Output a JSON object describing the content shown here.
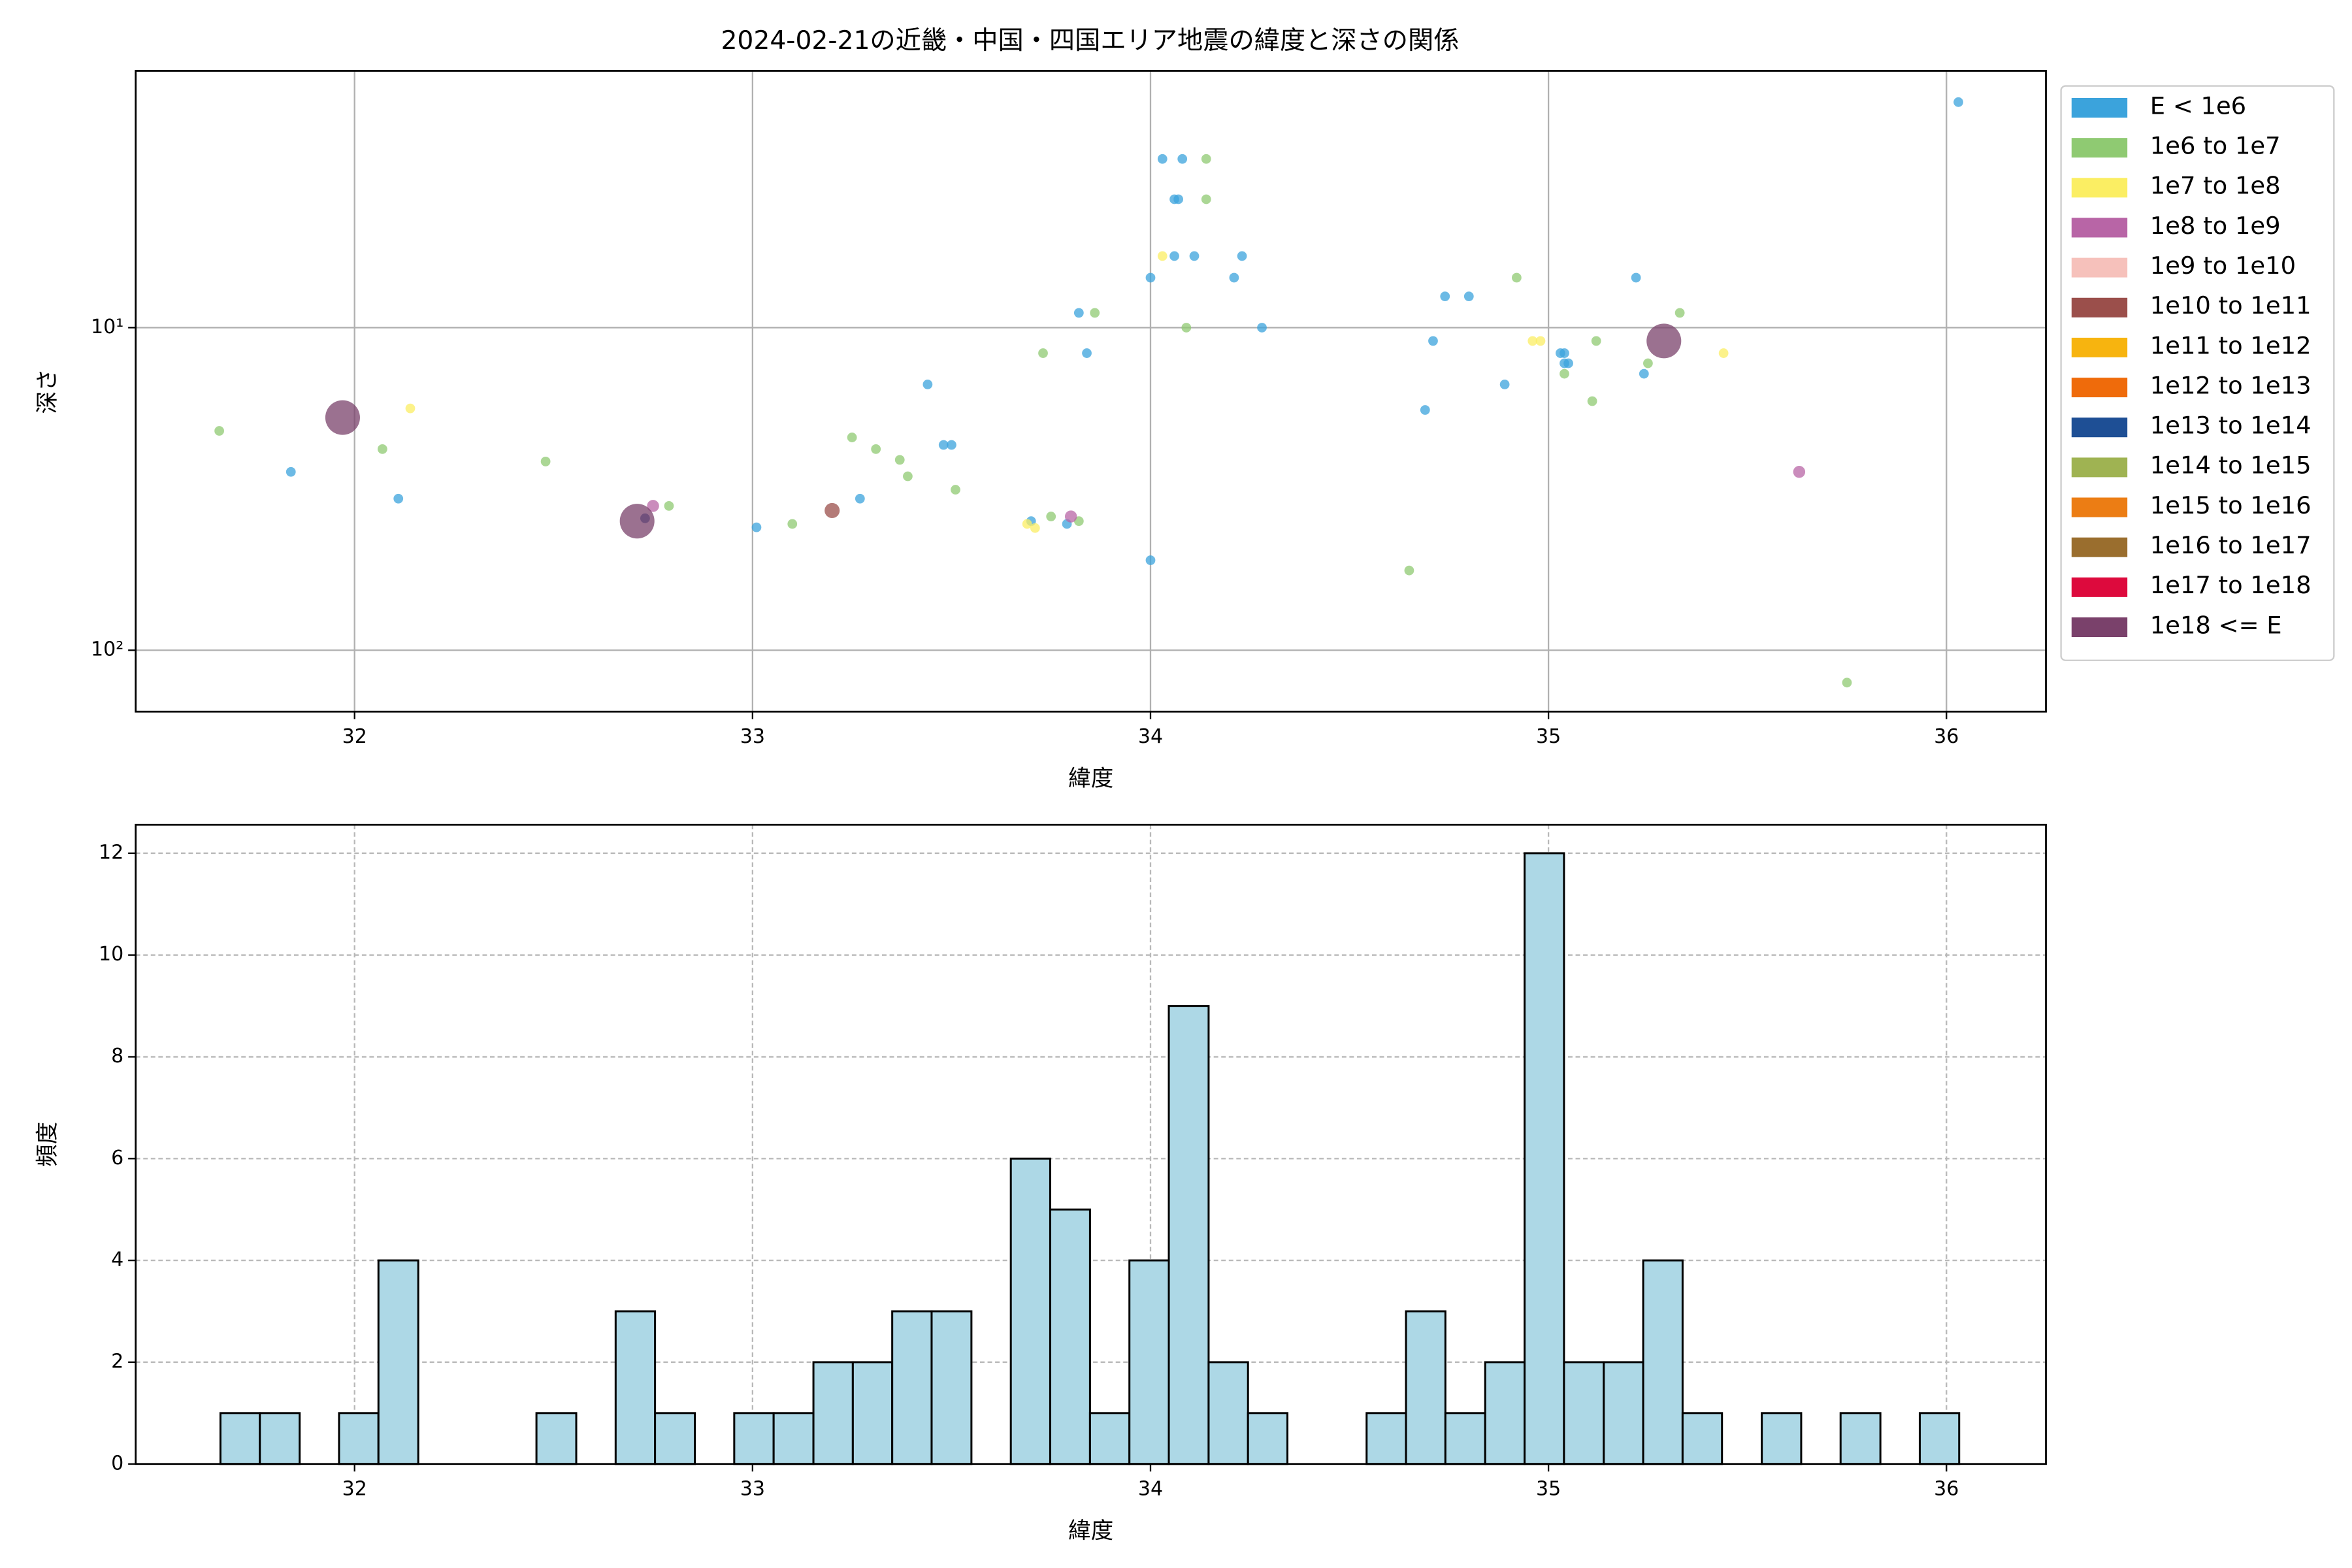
{
  "chart_data": [
    {
      "type": "scatter",
      "title": "2024-02-21の近畿・中国・四国エリア地震の緯度と深さの関係",
      "xlabel": "緯度",
      "ylabel": "深さ",
      "xlim": [
        31.45,
        36.25
      ],
      "xticks": [
        32,
        33,
        34,
        35,
        36
      ],
      "ylim": [
        155,
        1.6
      ],
      "yscale": "log",
      "yticks": [
        {
          "value": 10,
          "label": "10¹"
        },
        {
          "value": 100,
          "label": "10²"
        }
      ],
      "grid": true,
      "grid_linestyle": "solid",
      "legend": "outside upper right",
      "series": [
        {
          "name": "E < 1e6",
          "color": "#3ba3dc",
          "size": 3.2,
          "x": [
            31.84,
            32.11,
            33.01,
            33.27,
            33.44,
            33.48,
            33.5,
            33.7,
            33.79,
            33.82,
            33.84,
            34.0,
            34.0,
            34.03,
            34.06,
            34.07,
            34.06,
            34.08,
            34.11,
            34.21,
            34.23,
            34.28,
            34.69,
            34.71,
            34.74,
            34.8,
            34.89,
            35.03,
            35.04,
            35.04,
            35.05,
            35.22,
            35.24,
            36.03
          ],
          "values": [
            28,
            33.9,
            41.6,
            33.9,
            15,
            23.1,
            23.1,
            39.8,
            40.6,
            9.0,
            12,
            52.6,
            7.0,
            3.0,
            4.0,
            4.0,
            6.0,
            3.0,
            6,
            7,
            6,
            10,
            18,
            11,
            8,
            8,
            15,
            12,
            12,
            12.9,
            12.9,
            7,
            13.9,
            2.0
          ]
        },
        {
          "name": "1e6 to 1e7",
          "color": "#8fca72",
          "size": 3.2,
          "x": [
            31.66,
            32.07,
            32.48,
            32.79,
            33.1,
            33.25,
            33.31,
            33.37,
            33.39,
            33.51,
            33.73,
            33.75,
            33.82,
            33.86,
            34.09,
            34.14,
            34.14,
            34.65,
            34.92,
            35.04,
            35.11,
            35.12,
            35.25,
            35.33,
            35.75
          ],
          "values": [
            20.9,
            23.8,
            26,
            35.7,
            40.6,
            21.9,
            23.8,
            25.7,
            28.9,
            31.8,
            12,
            38.5,
            39.8,
            9,
            10,
            3,
            4,
            56.6,
            7,
            13.9,
            16.9,
            11,
            12.9,
            9,
            126
          ]
        },
        {
          "name": "1e7 to 1e8",
          "color": "#fbee63",
          "size": 3.2,
          "x": [
            32.14,
            33.69,
            33.71,
            34.03,
            34.96,
            34.98,
            35.44
          ],
          "values": [
            17.8,
            40.6,
            41.8,
            6.0,
            11,
            11,
            12
          ]
        },
        {
          "name": "1e8 to 1e9",
          "color": "#b865a6",
          "size": 4,
          "x": [
            32.75,
            33.8,
            35.63
          ],
          "values": [
            35.7,
            38.5,
            28
          ]
        },
        {
          "name": "1e9 to 1e10",
          "color": "#f6c1bb",
          "size": 4.5,
          "x": [],
          "values": []
        },
        {
          "name": "1e10 to 1e11",
          "color": "#9b4f4b",
          "size": 5,
          "x": [
            33.2
          ],
          "values": [
            36.9
          ]
        },
        {
          "name": "1e11 to 1e12",
          "color": "#f7b40f",
          "size": 5,
          "x": [],
          "values": []
        },
        {
          "name": "1e12 to 1e13",
          "color": "#ef6b0b",
          "size": 5,
          "x": [],
          "values": []
        },
        {
          "name": "1e13 to 1e14",
          "color": "#1e4f95",
          "size": 3.2,
          "x": [
            32.73
          ],
          "values": [
            39
          ]
        },
        {
          "name": "1e14 to 1e15",
          "color": "#9fb352",
          "size": 6,
          "x": [],
          "values": []
        },
        {
          "name": "1e15 to 1e16",
          "color": "#ec7d14",
          "size": 7,
          "x": [],
          "values": []
        },
        {
          "name": "1e16 to 1e17",
          "color": "#9a6e2e",
          "size": 8,
          "x": [],
          "values": []
        },
        {
          "name": "1e17 to 1e18",
          "color": "#dd0a3d",
          "size": 9,
          "x": [],
          "values": []
        },
        {
          "name": "1e18 <= E",
          "color": "#7a416b",
          "size": 11.5,
          "x": [
            31.97,
            32.71,
            35.29
          ],
          "values": [
            19,
            39.8,
            11
          ]
        }
      ]
    },
    {
      "type": "histogram",
      "xlabel": "緯度",
      "ylabel": "頻度",
      "color": "#add8e6",
      "edgecolor": "#000000",
      "xlim": [
        31.45,
        36.25
      ],
      "xticks": [
        32,
        33,
        34,
        35,
        36
      ],
      "ylim": [
        0,
        12.56
      ],
      "yticks": [
        0,
        2,
        4,
        6,
        8,
        10,
        12
      ],
      "grid": true,
      "grid_linestyle": "dashed",
      "bins": [
        31.663,
        31.762,
        31.862,
        31.961,
        32.06,
        32.16,
        32.259,
        32.358,
        32.457,
        32.557,
        32.656,
        32.755,
        32.855,
        32.954,
        33.053,
        33.153,
        33.252,
        33.351,
        33.45,
        33.55,
        33.649,
        33.748,
        33.848,
        33.947,
        34.046,
        34.146,
        34.245,
        34.344,
        34.443,
        34.543,
        34.642,
        34.741,
        34.841,
        34.94,
        35.039,
        35.139,
        35.238,
        35.337,
        35.436,
        35.536,
        35.635,
        35.734,
        35.834,
        35.933,
        36.032
      ],
      "values": [
        1,
        1,
        0,
        1,
        4,
        0,
        0,
        0,
        1,
        0,
        3,
        1,
        0,
        1,
        1,
        2,
        2,
        3,
        3,
        0,
        6,
        5,
        1,
        4,
        9,
        2,
        1,
        0,
        0,
        1,
        3,
        1,
        2,
        12,
        2,
        2,
        4,
        1,
        0,
        1,
        0,
        1,
        0,
        1
      ]
    }
  ]
}
